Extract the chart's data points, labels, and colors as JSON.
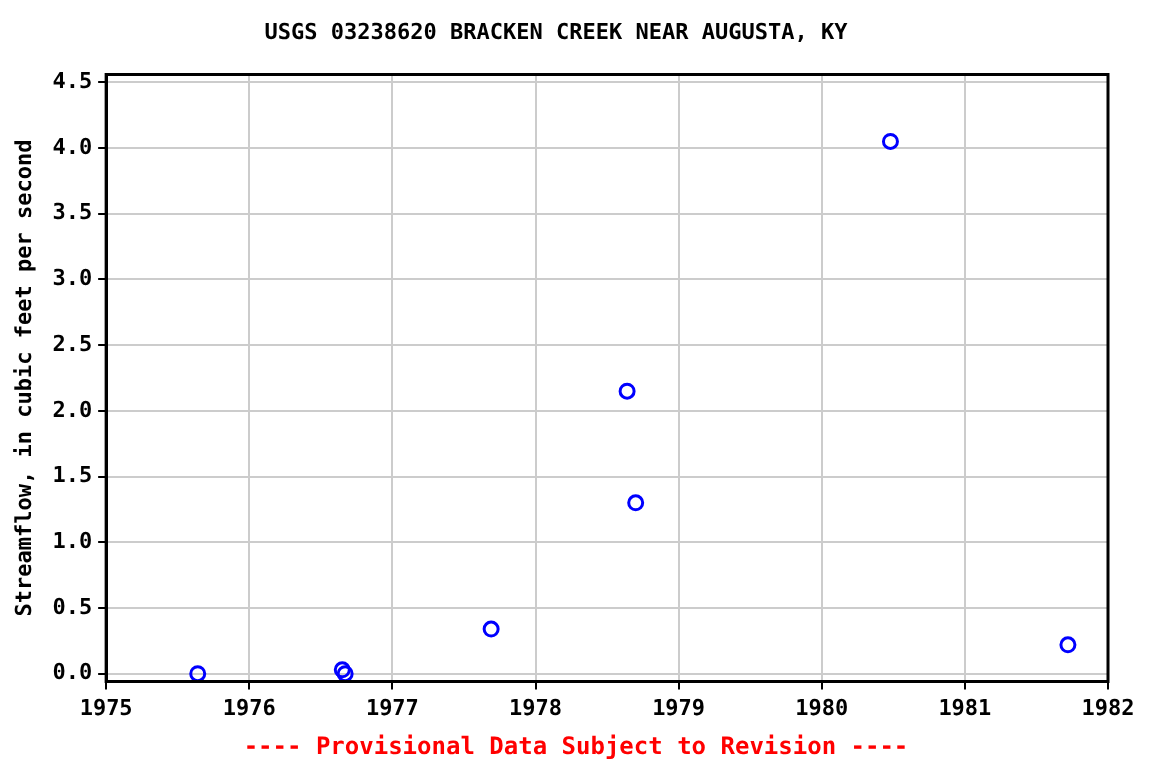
{
  "chart_data": {
    "type": "scatter",
    "title": "USGS 03238620 BRACKEN CREEK NEAR AUGUSTA, KY",
    "ylabel": "Streamflow, in cubic feet per second",
    "x": [
      1975.64,
      1976.65,
      1976.67,
      1977.69,
      1978.64,
      1978.7,
      1980.48,
      1981.72
    ],
    "series": [
      {
        "color": "#0000ff",
        "values": [
          0,
          0.03,
          0,
          0.34,
          2.15,
          1.3,
          4.05,
          0.22
        ]
      }
    ],
    "xlim": [
      1975,
      1982
    ],
    "xticks": [
      1975,
      1976,
      1977,
      1978,
      1979,
      1980,
      1981,
      1982
    ],
    "ylim": [
      -0.06,
      4.56
    ],
    "yticks": [
      {
        "value": 0,
        "label": "0.0"
      },
      {
        "value": 0.5,
        "label": "0.5"
      },
      {
        "value": 1,
        "label": "1.0"
      },
      {
        "value": 1.5,
        "label": "1.5"
      },
      {
        "value": 2,
        "label": "2.0"
      },
      {
        "value": 2.5,
        "label": "2.5"
      },
      {
        "value": 3,
        "label": "3.0"
      },
      {
        "value": 3.5,
        "label": "3.5"
      },
      {
        "value": 4,
        "label": "4.0"
      },
      {
        "value": 4.5,
        "label": "4.5"
      }
    ],
    "grid": true,
    "legend": false,
    "marker": "circle",
    "annotations": [
      "---- Provisional Data Subject to Revision ----"
    ]
  }
}
